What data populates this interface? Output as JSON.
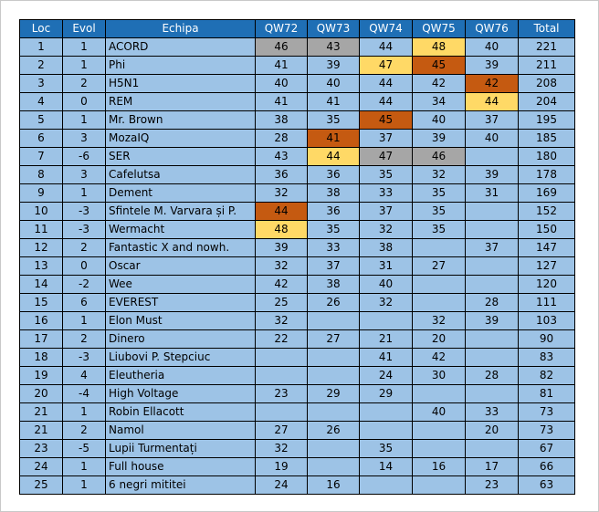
{
  "colors": {
    "header_bg": "#1f6fb5",
    "header_text": "#ffffff",
    "cell_bg": "#9dc3e6",
    "highlight_gray": "#a6a6a6",
    "highlight_orange": "#c55a11",
    "highlight_yellow": "#ffd966"
  },
  "table": {
    "headers": [
      "Loc",
      "Evol",
      "Echipa",
      "QW72",
      "QW73",
      "QW74",
      "QW75",
      "QW76",
      "Total"
    ],
    "rows": [
      {
        "cells": [
          "1",
          "1",
          "ACORD",
          "46",
          "43",
          "44",
          "48",
          "40",
          "221"
        ],
        "hl": {
          "3": "gray",
          "4": "gray",
          "6": "yellow"
        }
      },
      {
        "cells": [
          "2",
          "1",
          "Phi",
          "41",
          "39",
          "47",
          "45",
          "39",
          "211"
        ],
        "hl": {
          "5": "yellow",
          "6": "orange"
        }
      },
      {
        "cells": [
          "3",
          "2",
          "H5N1",
          "40",
          "40",
          "44",
          "42",
          "42",
          "208"
        ],
        "hl": {
          "7": "orange"
        }
      },
      {
        "cells": [
          "4",
          "0",
          "REM",
          "41",
          "41",
          "44",
          "34",
          "44",
          "204"
        ],
        "hl": {
          "7": "yellow"
        }
      },
      {
        "cells": [
          "5",
          "1",
          "Mr. Brown",
          "38",
          "35",
          "45",
          "40",
          "37",
          "195"
        ],
        "hl": {
          "5": "orange"
        }
      },
      {
        "cells": [
          "6",
          "3",
          "MozaIQ",
          "28",
          "41",
          "37",
          "39",
          "40",
          "185"
        ],
        "hl": {
          "4": "orange"
        }
      },
      {
        "cells": [
          "7",
          "-6",
          "SER",
          "43",
          "44",
          "47",
          "46",
          "",
          "180"
        ],
        "hl": {
          "4": "yellow",
          "5": "gray",
          "6": "gray"
        }
      },
      {
        "cells": [
          "8",
          "3",
          "Cafelutsa",
          "36",
          "36",
          "35",
          "32",
          "39",
          "178"
        ],
        "hl": {}
      },
      {
        "cells": [
          "9",
          "1",
          "Dement",
          "32",
          "38",
          "33",
          "35",
          "31",
          "169"
        ],
        "hl": {}
      },
      {
        "cells": [
          "10",
          "-3",
          "Sfintele M. Varvara și P.",
          "44",
          "36",
          "37",
          "35",
          "",
          "152"
        ],
        "hl": {
          "3": "orange"
        }
      },
      {
        "cells": [
          "11",
          "-3",
          "Wermacht",
          "48",
          "35",
          "32",
          "35",
          "",
          "150"
        ],
        "hl": {
          "3": "yellow"
        }
      },
      {
        "cells": [
          "12",
          "2",
          "Fantastic X and nowh.",
          "39",
          "33",
          "38",
          "",
          "37",
          "147"
        ],
        "hl": {}
      },
      {
        "cells": [
          "13",
          "0",
          "Oscar",
          "32",
          "37",
          "31",
          "27",
          "",
          "127"
        ],
        "hl": {}
      },
      {
        "cells": [
          "14",
          "-2",
          "Wee",
          "42",
          "38",
          "40",
          "",
          "",
          "120"
        ],
        "hl": {}
      },
      {
        "cells": [
          "15",
          "6",
          "EVEREST",
          "25",
          "26",
          "32",
          "",
          "28",
          "111"
        ],
        "hl": {}
      },
      {
        "cells": [
          "16",
          "1",
          "Elon Must",
          "32",
          "",
          "",
          "32",
          "39",
          "103"
        ],
        "hl": {}
      },
      {
        "cells": [
          "17",
          "2",
          "Dinero",
          "22",
          "27",
          "21",
          "20",
          "",
          "90"
        ],
        "hl": {}
      },
      {
        "cells": [
          "18",
          "-3",
          "Liubovi P. Stepciuc",
          "",
          "",
          "41",
          "42",
          "",
          "83"
        ],
        "hl": {}
      },
      {
        "cells": [
          "19",
          "4",
          "Eleutheria",
          "",
          "",
          "24",
          "30",
          "28",
          "82"
        ],
        "hl": {}
      },
      {
        "cells": [
          "20",
          "-4",
          "High Voltage",
          "23",
          "29",
          "29",
          "",
          "",
          "81"
        ],
        "hl": {}
      },
      {
        "cells": [
          "21",
          "1",
          "Robin Ellacott",
          "",
          "",
          "",
          "40",
          "33",
          "73"
        ],
        "hl": {}
      },
      {
        "cells": [
          "21",
          "2",
          "Namol",
          "27",
          "26",
          "",
          "",
          "20",
          "73"
        ],
        "hl": {}
      },
      {
        "cells": [
          "23",
          "-5",
          "Lupii Turmentați",
          "32",
          "",
          "35",
          "",
          "",
          "67"
        ],
        "hl": {}
      },
      {
        "cells": [
          "24",
          "1",
          "Full house",
          "19",
          "",
          "14",
          "16",
          "17",
          "66"
        ],
        "hl": {}
      },
      {
        "cells": [
          "25",
          "1",
          "6 negri mititei",
          "24",
          "16",
          "",
          "",
          "23",
          "63"
        ],
        "hl": {}
      }
    ]
  }
}
